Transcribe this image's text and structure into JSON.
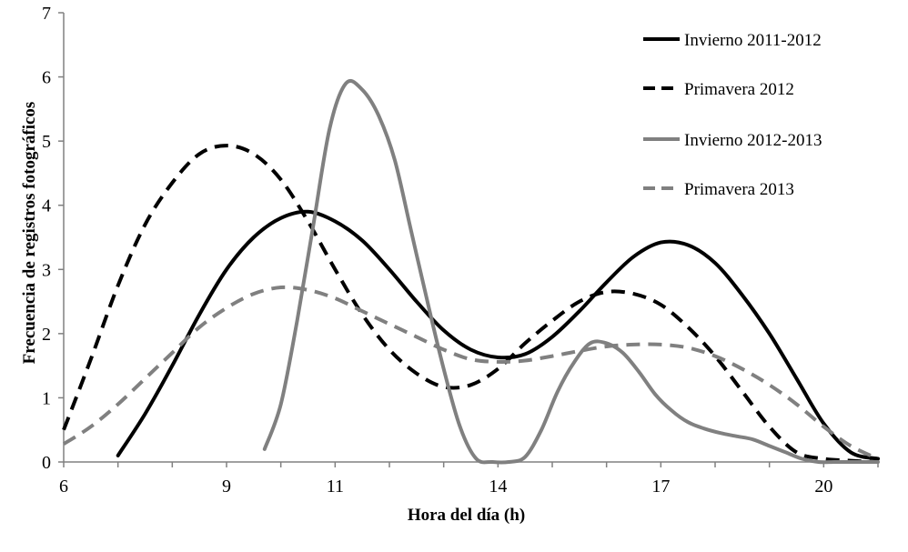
{
  "chart_data": {
    "type": "line",
    "title": "",
    "xlabel": "Hora del día (h)",
    "ylabel": "Frecuencia de registros fotográficos",
    "xlim": [
      6,
      21
    ],
    "ylim": [
      0,
      7
    ],
    "x_tick_labels": [
      {
        "value": 6,
        "label": "6"
      },
      {
        "value": 9,
        "label": "9"
      },
      {
        "value": 11,
        "label": "11"
      },
      {
        "value": 14,
        "label": "14"
      },
      {
        "value": 17,
        "label": "17"
      },
      {
        "value": 20,
        "label": "20"
      }
    ],
    "y_ticks": [
      0,
      1,
      2,
      3,
      4,
      5,
      6,
      7
    ],
    "grid": false,
    "legend_position": "top-right",
    "series": [
      {
        "name": "Invierno 2011-2012",
        "color": "#000000",
        "style": "solid",
        "x": [
          7.0,
          7.5,
          8.0,
          8.5,
          9.0,
          9.5,
          10.0,
          10.5,
          11.0,
          11.5,
          12.0,
          12.5,
          13.0,
          13.5,
          14.0,
          14.5,
          15.0,
          15.5,
          16.0,
          16.5,
          17.0,
          17.5,
          18.0,
          18.5,
          19.0,
          19.5,
          20.0,
          20.5,
          21.0
        ],
        "y": [
          0.1,
          0.75,
          1.5,
          2.3,
          3.0,
          3.5,
          3.8,
          3.9,
          3.75,
          3.45,
          3.0,
          2.5,
          2.05,
          1.75,
          1.63,
          1.68,
          1.95,
          2.35,
          2.8,
          3.2,
          3.42,
          3.38,
          3.1,
          2.6,
          2.0,
          1.3,
          0.6,
          0.15,
          0.05
        ]
      },
      {
        "name": "Primavera 2012",
        "color": "#000000",
        "style": "dashed",
        "x": [
          6.0,
          6.5,
          7.0,
          7.5,
          8.0,
          8.5,
          9.0,
          9.5,
          10.0,
          10.5,
          11.0,
          11.5,
          12.0,
          12.5,
          13.0,
          13.5,
          14.0,
          14.5,
          15.0,
          15.5,
          16.0,
          16.5,
          17.0,
          17.5,
          18.0,
          18.5,
          19.0,
          19.5,
          20.0,
          20.5,
          21.0
        ],
        "y": [
          0.5,
          1.6,
          2.75,
          3.7,
          4.35,
          4.8,
          4.93,
          4.8,
          4.4,
          3.75,
          3.0,
          2.3,
          1.75,
          1.38,
          1.17,
          1.2,
          1.45,
          1.85,
          2.2,
          2.5,
          2.65,
          2.62,
          2.45,
          2.1,
          1.65,
          1.1,
          0.55,
          0.15,
          0.05,
          0.02,
          0.0
        ]
      },
      {
        "name": "Invierno 2012-2013",
        "color": "#808080",
        "style": "solid",
        "x": [
          9.7,
          10.0,
          10.3,
          10.6,
          10.9,
          11.2,
          11.5,
          11.8,
          12.1,
          12.4,
          12.7,
          13.0,
          13.3,
          13.6,
          13.9,
          14.2,
          14.5,
          14.8,
          15.1,
          15.4,
          15.7,
          16.0,
          16.3,
          16.6,
          16.9,
          17.2,
          17.5,
          17.8,
          18.1,
          18.4,
          18.7,
          19.0,
          19.3,
          19.6,
          19.9,
          20.2,
          20.5,
          20.8,
          21.0
        ],
        "y": [
          0.2,
          0.9,
          2.2,
          3.7,
          5.2,
          5.9,
          5.8,
          5.4,
          4.7,
          3.6,
          2.5,
          1.45,
          0.55,
          0.05,
          0.0,
          0.0,
          0.08,
          0.5,
          1.1,
          1.55,
          1.85,
          1.85,
          1.7,
          1.4,
          1.05,
          0.8,
          0.62,
          0.52,
          0.45,
          0.4,
          0.35,
          0.25,
          0.15,
          0.05,
          0.0,
          0.0,
          0.0,
          0.0,
          0.0
        ]
      },
      {
        "name": "Primavera 2013",
        "color": "#808080",
        "style": "dashed",
        "x": [
          6.0,
          6.5,
          7.0,
          7.5,
          8.0,
          8.5,
          9.0,
          9.5,
          10.0,
          10.5,
          11.0,
          11.5,
          12.0,
          12.5,
          13.0,
          13.5,
          14.0,
          14.5,
          15.0,
          15.5,
          16.0,
          16.5,
          17.0,
          17.5,
          18.0,
          18.5,
          19.0,
          19.5,
          20.0,
          20.5,
          21.0
        ],
        "y": [
          0.28,
          0.55,
          0.9,
          1.3,
          1.7,
          2.1,
          2.4,
          2.62,
          2.72,
          2.68,
          2.55,
          2.35,
          2.15,
          1.95,
          1.75,
          1.6,
          1.56,
          1.58,
          1.65,
          1.73,
          1.8,
          1.83,
          1.83,
          1.78,
          1.65,
          1.45,
          1.2,
          0.9,
          0.55,
          0.25,
          0.05
        ]
      }
    ]
  }
}
